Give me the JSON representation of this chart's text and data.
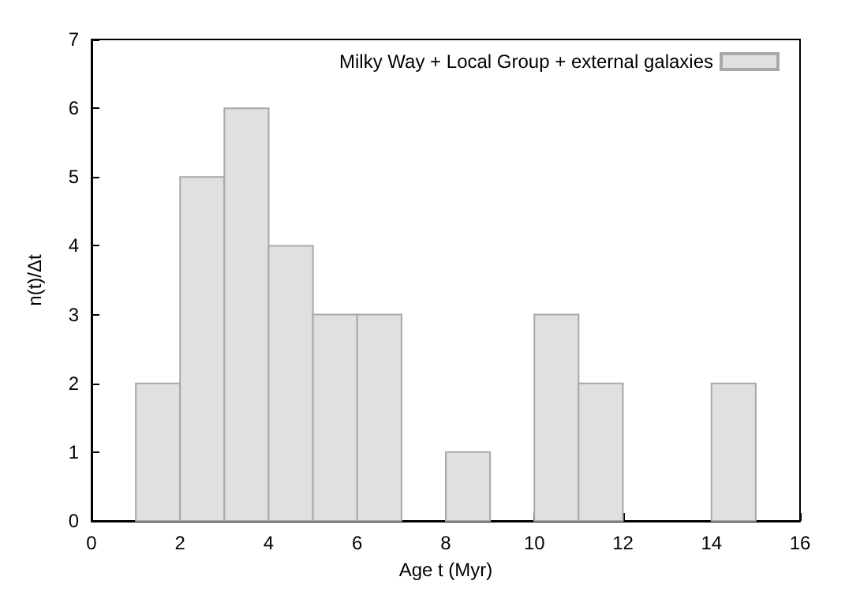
{
  "chart_data": {
    "type": "histogram",
    "xlabel": "Age t (Myr)",
    "ylabel": "n(t)/Δt",
    "bins": [
      1,
      2,
      3,
      4,
      5,
      6,
      7,
      8,
      9,
      10,
      11,
      12,
      13,
      14,
      15
    ],
    "series": [
      {
        "name": "Milky Way + Local Group + external galaxies",
        "color": "#e0e0e0",
        "values": [
          2,
          5,
          6,
          4,
          3,
          3,
          0,
          1,
          0,
          3,
          2,
          0,
          0,
          2
        ]
      }
    ],
    "xlim": [
      0,
      16
    ],
    "xticks": [
      0,
      2,
      4,
      6,
      8,
      10,
      12,
      14,
      16
    ],
    "ylim": [
      0,
      7
    ],
    "yticks": [
      0,
      1,
      2,
      3,
      4,
      5,
      6,
      7
    ],
    "grid": false,
    "legend": "top right"
  }
}
